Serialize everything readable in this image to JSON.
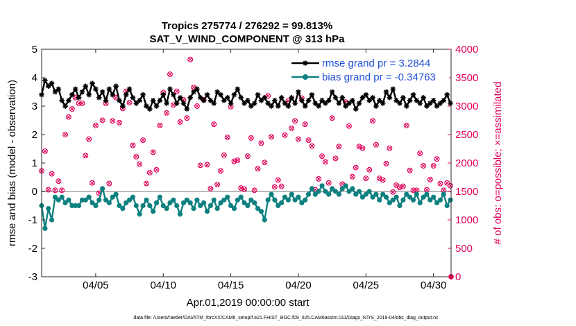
{
  "chart_data": {
    "type": "line",
    "title_line1": "Tropics 275774 / 276292 = 99.813%",
    "title_line2": "SAT_V_WIND_COMPONENT @ 313 hPa",
    "xlabel": "Apr.01,2019 00:00:00 start",
    "ylabel_left": "rmse and bias (model - observation)",
    "ylabel_right": "# of obs: o=possible; ×=assimilated",
    "footnote": "data file: /Users/raeder/DAI/ATM_forcXX/CAM6_setup/f.e21.FHIST_BGC.f09_025.CAM6assim.011/Diags_NTrS_2019-04/obs_diag_output.nc",
    "xlim": [
      1.0,
      31.3
    ],
    "ylim_left": [
      -3,
      5
    ],
    "ylim_right": [
      0,
      4000
    ],
    "xticks": [
      {
        "value": 5,
        "label": "04/05"
      },
      {
        "value": 10,
        "label": "04/10"
      },
      {
        "value": 15,
        "label": "04/15"
      },
      {
        "value": 20,
        "label": "04/20"
      },
      {
        "value": 25,
        "label": "04/25"
      },
      {
        "value": 30,
        "label": "04/30"
      }
    ],
    "yticks_left": [
      {
        "value": -3,
        "label": "-3"
      },
      {
        "value": -2,
        "label": "-2"
      },
      {
        "value": -1,
        "label": "-1"
      },
      {
        "value": 0,
        "label": "0"
      },
      {
        "value": 1,
        "label": "1"
      },
      {
        "value": 2,
        "label": "2"
      },
      {
        "value": 3,
        "label": "3"
      },
      {
        "value": 4,
        "label": "4"
      },
      {
        "value": 5,
        "label": "5"
      }
    ],
    "yticks_right": [
      {
        "value": 0,
        "label": "0"
      },
      {
        "value": 500,
        "label": "500"
      },
      {
        "value": 1000,
        "label": "1000"
      },
      {
        "value": 1500,
        "label": "1500"
      },
      {
        "value": 2000,
        "label": "2000"
      },
      {
        "value": 2500,
        "label": "2500"
      },
      {
        "value": 3000,
        "label": "3000"
      },
      {
        "value": 3500,
        "label": "3500"
      },
      {
        "value": 4000,
        "label": "4000"
      }
    ],
    "series": [
      {
        "name": "rmse",
        "legend_label": "rmse grand pr = 3.2844",
        "axis": "left",
        "color": "#000000",
        "marker": "star",
        "x_start": 1.0,
        "x_step": 0.25,
        "values": [
          3.4,
          3.9,
          3.7,
          3.8,
          3.5,
          3.6,
          3.2,
          3.0,
          3.2,
          3.4,
          3.6,
          3.3,
          3.5,
          3.7,
          3.4,
          3.8,
          3.6,
          3.3,
          3.5,
          3.2,
          3.6,
          3.4,
          3.7,
          3.2,
          3.0,
          3.4,
          3.6,
          3.3,
          3.1,
          3.2,
          3.4,
          3.0,
          2.9,
          3.2,
          3.0,
          3.2,
          3.4,
          3.1,
          3.6,
          3.4,
          3.1,
          3.3,
          3.1,
          2.9,
          3.3,
          3.5,
          3.6,
          3.3,
          3.2,
          3.4,
          3.2,
          3.1,
          3.5,
          3.4,
          3.2,
          3.3,
          3.1,
          3.4,
          3.6,
          3.3,
          3.1,
          3.2,
          3.0,
          3.1,
          3.4,
          3.2,
          3.3,
          3.1,
          3.0,
          3.2,
          3.0,
          3.3,
          3.1,
          3.0,
          3.3,
          3.1,
          3.5,
          3.2,
          3.0,
          3.2,
          3.4,
          3.1,
          3.0,
          3.2,
          3.1,
          3.2,
          3.5,
          3.3,
          3.1,
          3.3,
          3.0,
          3.1,
          3.2,
          2.9,
          3.1,
          3.3,
          3.4,
          3.2,
          3.3,
          3.0,
          3.2,
          3.1,
          3.5,
          3.3,
          3.6,
          3.2,
          3.1,
          3.3,
          3.0,
          3.2,
          3.4,
          3.2,
          3.1,
          3.3,
          3.0,
          3.1,
          3.2,
          3.0,
          3.1,
          3.2,
          3.4,
          3.1,
          3.3,
          3.2,
          3.0,
          3.1,
          3.3,
          3.2,
          3.1,
          3.2,
          3.0,
          2.9,
          3.1,
          3.2,
          3.4,
          3.2,
          3.5,
          3.3,
          3.1,
          3.3,
          3.2,
          3.0,
          3.1,
          3.4,
          3.2,
          3.3,
          3.1,
          3.0,
          3.2,
          3.0,
          3.3,
          3.2,
          3.5,
          3.4,
          3.1,
          3.2,
          3.4,
          3.3,
          3.0,
          3.2,
          3.1,
          3.0,
          3.3,
          3.4,
          3.2,
          3.1,
          3.3,
          3.6,
          3.5,
          3.3,
          3.0,
          3.2,
          3.1,
          3.2,
          3.4,
          3.6,
          3.5,
          3.3,
          3.0,
          3.1,
          3.3,
          3.4,
          3.5,
          3.3,
          3.4,
          3.2,
          3.0,
          3.1,
          3.2,
          3.6,
          3.8,
          3.5,
          3.2,
          3.3,
          3.0,
          3.1,
          3.3,
          3.4,
          3.6,
          3.3,
          3.1,
          3.3,
          3.4,
          3.5,
          3.7,
          3.9,
          3.6,
          3.3,
          3.0,
          3.2,
          3.4,
          3.6,
          3.5,
          3.3,
          3.0,
          3.1,
          3.0
        ]
      },
      {
        "name": "bias",
        "legend_label": "bias grand pr = -0.34763",
        "axis": "left",
        "color": "#0f8080",
        "marker": "dot",
        "x_start": 1.0,
        "x_step": 0.25,
        "values": [
          -0.5,
          -1.3,
          -0.6,
          -1.0,
          -0.2,
          -0.3,
          -0.2,
          -0.4,
          -0.3,
          -0.5,
          -0.5,
          -0.5,
          -0.3,
          -0.3,
          -0.2,
          -0.4,
          -0.5,
          -0.3,
          0.1,
          -0.3,
          -0.4,
          -0.2,
          -0.1,
          -0.5,
          -0.6,
          -0.4,
          -0.3,
          -0.2,
          -0.5,
          -0.8,
          -0.5,
          -0.3,
          -0.5,
          -0.7,
          -0.4,
          -0.2,
          -0.5,
          -0.6,
          -0.4,
          -0.3,
          -0.5,
          -0.8,
          -0.4,
          -0.3,
          -0.4,
          -0.6,
          -0.3,
          -0.5,
          -0.4,
          -0.7,
          -0.5,
          -0.3,
          -0.6,
          -0.4,
          -0.3,
          -0.2,
          -0.5,
          -0.6,
          -0.3,
          -0.2,
          -0.4,
          -0.5,
          -0.3,
          -0.4,
          -0.6,
          -0.7,
          -1.0,
          -0.3,
          -0.1,
          -0.3,
          -0.5,
          -0.4,
          -0.2,
          -0.3,
          -0.1,
          -0.3,
          -0.2,
          -0.4,
          -0.3,
          -0.1,
          0.1,
          -0.1,
          0.0,
          0.2,
          0.0,
          -0.1,
          0.1,
          0.0,
          -0.1,
          0.1,
          0.2,
          0.0,
          0.1,
          -0.1,
          0.0,
          -0.2,
          -0.1,
          0.0,
          -0.2,
          -0.1,
          -0.3,
          -0.1,
          -0.2,
          -0.4,
          -0.3,
          -0.2,
          -0.5,
          -0.3,
          -0.1,
          -0.2,
          -0.3,
          -0.1,
          -0.4,
          -0.2,
          -0.1,
          -0.3,
          -0.2,
          -0.4,
          -0.3,
          -0.1,
          -0.5,
          -0.3,
          -0.2,
          -0.9,
          -0.3,
          -0.2,
          -0.1,
          0.0,
          0.1,
          -0.2,
          -0.3,
          -0.1,
          0.6,
          0.0,
          0.2,
          -0.1,
          0.3,
          -0.2,
          0.1,
          0.2,
          -0.1,
          0.3,
          0.1,
          0.8,
          0.2,
          0.0,
          0.4,
          -0.1,
          0.0,
          0.2,
          -0.3,
          0.0,
          -0.1,
          -0.4,
          -0.2,
          -0.3,
          -0.1,
          0.0,
          0.1,
          -0.1,
          0.2,
          0.0,
          -0.1,
          0.2,
          0.0,
          0.1,
          -0.1,
          -0.2,
          -0.4,
          -0.3,
          -0.1,
          0.0,
          -0.2,
          0.1,
          -0.1,
          0.0,
          -0.2,
          0.0,
          -0.1,
          0.2,
          0.0,
          -0.1,
          -0.5,
          -0.8,
          -0.5,
          -1.0,
          -0.6,
          -1.2,
          -0.8,
          -1.0,
          -1.3,
          -1.5,
          -1.7,
          -1.0,
          -0.8,
          -1.0,
          -1.3,
          -0.7,
          -0.5,
          -0.8,
          -0.6,
          -0.4,
          -0.6,
          -0.8,
          -0.9,
          -1.0,
          -0.8,
          -0.7,
          -0.6,
          -0.7,
          -0.9,
          -0.8,
          -0.6,
          -0.7,
          -0.9,
          -1.0,
          -0.8,
          -0.7,
          -0.6,
          -0.8,
          -0.5,
          -0.6,
          -0.7,
          -0.9,
          -0.7,
          -0.6,
          -0.8,
          -0.9
        ]
      },
      {
        "name": "obs_possible",
        "axis": "right",
        "color": "#e0005a",
        "marker": "circle",
        "x_start": 1.0,
        "x_step": 0.25,
        "values": [
          1860,
          2210,
          1530,
          1810,
          1520,
          1680,
          1520,
          2500,
          2810,
          2950,
          3150,
          3050,
          3050,
          2130,
          2420,
          1650,
          2660,
          1470,
          2750,
          3050,
          1640,
          2740,
          3150,
          2710,
          2960,
          3260,
          3060,
          2310,
          2110,
          1980,
          2400,
          1640,
          1830,
          2190,
          1880,
          2660,
          3240,
          2880,
          3560,
          3020,
          3260,
          2720,
          3110,
          2790,
          3820,
          3330,
          3000,
          1960,
          3110,
          1970,
          1550,
          2680,
          1620,
          1860,
          2140,
          2450,
          2990,
          2030,
          2050,
          1560,
          1540,
          2120,
          2440,
          1520,
          1900,
          2350,
          2010,
          3180,
          2460,
          1580,
          1700,
          1590,
          2490,
          3090,
          2610,
          2740,
          2420,
          3140,
          2680,
          2400,
          2300,
          1530,
          1720,
          2120,
          2020,
          1650,
          2790,
          2080,
          2290,
          1630,
          3070,
          2650,
          1760,
          1920,
          2290,
          2260,
          1730,
          1880,
          2740,
          2320,
          1730,
          1700,
          1990,
          2260,
          1490,
          1610,
          1570,
          1590,
          2660,
          1870,
          1520,
          1520,
          2170,
          1950,
          1530,
          1710,
          1950,
          2070,
          1640,
          1520,
          1650,
          1600,
          1520,
          1830,
          1830,
          1930,
          1870,
          1630,
          1540,
          1530,
          1630,
          1520,
          1770,
          1810,
          1620,
          1530,
          1600,
          1570,
          1520,
          1530
        ]
      },
      {
        "name": "obs_assimilated",
        "axis": "right",
        "color": "#e0005a",
        "marker": "x",
        "x_start": 1.0,
        "x_step": 0.25,
        "values": [
          1860,
          2210,
          1530,
          1810,
          1520,
          1680,
          1520,
          2500,
          2810,
          2950,
          3150,
          3050,
          3050,
          2130,
          2420,
          1650,
          2660,
          1470,
          2750,
          3050,
          1640,
          2740,
          3150,
          2710,
          2960,
          3260,
          3060,
          2310,
          2110,
          1980,
          2400,
          1640,
          1830,
          2190,
          1880,
          2660,
          3240,
          2880,
          3560,
          3020,
          3260,
          2720,
          3110,
          2790,
          3820,
          3330,
          3000,
          1960,
          3110,
          1970,
          1550,
          2680,
          1620,
          1860,
          2140,
          2450,
          2990,
          2030,
          2050,
          1560,
          1540,
          2120,
          2440,
          1520,
          1900,
          2350,
          2010,
          3180,
          2460,
          1580,
          1700,
          1590,
          2490,
          3090,
          2610,
          2740,
          2420,
          3140,
          2680,
          2400,
          2300,
          1530,
          1720,
          2120,
          2020,
          1650,
          2790,
          2080,
          2290,
          1630,
          3070,
          2650,
          1760,
          1920,
          2290,
          2260,
          1730,
          1880,
          2740,
          2320,
          1730,
          1700,
          1990,
          2260,
          1490,
          1610,
          1570,
          1590,
          2660,
          1870,
          1520,
          1520,
          2170,
          1950,
          1530,
          1710,
          1950,
          2070,
          1640,
          1520,
          1650,
          1600,
          1520,
          1830,
          1830,
          1930,
          1870,
          1630,
          1540,
          1530,
          1630,
          1520,
          1770,
          1810,
          1620,
          1530,
          1600,
          1570,
          1520,
          1530
        ]
      }
    ],
    "zero_line": {
      "value": 0,
      "color": "#bbbbbb"
    },
    "legend_position": "top-right",
    "grid": false
  }
}
